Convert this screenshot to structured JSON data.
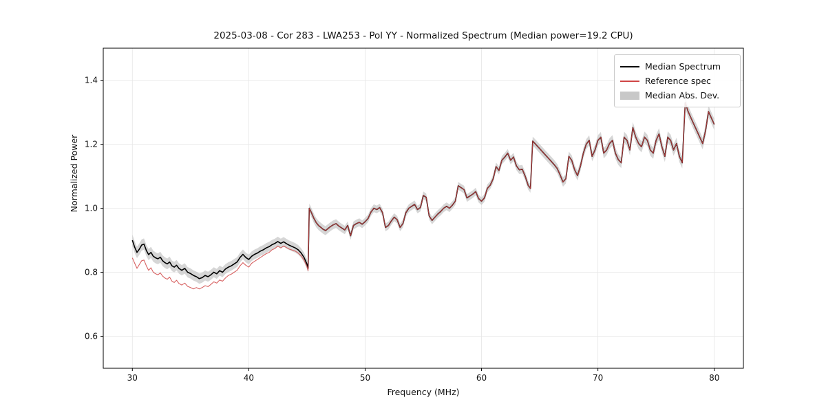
{
  "title": "2025-03-08 - Cor 283 - LWA253 - Pol YY - Normalized Spectrum (Median power=19.2 CPU)",
  "axes": {
    "xlabel": "Frequency (MHz)",
    "ylabel": "Normalized Power",
    "xticks": [
      "30",
      "40",
      "50",
      "60",
      "70",
      "80"
    ],
    "xtick_values": [
      30,
      40,
      50,
      60,
      70,
      80
    ],
    "yticks": [
      "0.6",
      "0.8",
      "1.0",
      "1.2",
      "1.4"
    ],
    "ytick_values": [
      0.6,
      0.8,
      1.0,
      1.2,
      1.4
    ],
    "xlim": [
      27.5,
      82.5
    ],
    "ylim": [
      0.5,
      1.5
    ],
    "grid": true,
    "grid_color": "#e6e6e6",
    "frame_color": "#000000"
  },
  "legend": {
    "position": "upper right",
    "items": [
      {
        "label": "Median Spectrum",
        "type": "line",
        "color": "#000000"
      },
      {
        "label": "Reference spec",
        "type": "line",
        "color": "#d04545"
      },
      {
        "label": "Median Abs. Dev.",
        "type": "band",
        "color": "#c8c8c8"
      }
    ]
  },
  "chart_data": {
    "type": "line",
    "title": "2025-03-08 - Cor 283 - LWA253 - Pol YY - Normalized Spectrum (Median power=19.2 CPU)",
    "xlabel": "Frequency (MHz)",
    "ylabel": "Normalized Power",
    "xlim": [
      27.5,
      82.5
    ],
    "ylim": [
      0.5,
      1.5
    ],
    "series": [
      {
        "name": "Median Spectrum",
        "color": "#000000",
        "linewidth": 1.6,
        "x": [
          30,
          30.2,
          30.4,
          30.6,
          30.8,
          31,
          31.2,
          31.4,
          31.6,
          31.8,
          32,
          32.2,
          32.4,
          32.6,
          32.8,
          33,
          33.2,
          33.4,
          33.6,
          33.8,
          34,
          34.25,
          34.5,
          34.75,
          35,
          35.25,
          35.5,
          35.75,
          36,
          36.25,
          36.5,
          36.75,
          37,
          37.25,
          37.5,
          37.75,
          38,
          38.25,
          38.5,
          38.75,
          39,
          39.25,
          39.5,
          39.75,
          40,
          40.25,
          40.5,
          40.75,
          41,
          41.25,
          41.5,
          41.75,
          42,
          42.25,
          42.5,
          42.75,
          43,
          43.25,
          43.5,
          43.75,
          44,
          44.25,
          44.5,
          44.75,
          45,
          45.1,
          45.2,
          45.4,
          45.6,
          45.8,
          46,
          46.2,
          46.4,
          46.6,
          46.8,
          47,
          47.25,
          47.5,
          47.75,
          48,
          48.25,
          48.5,
          48.75,
          49,
          49.25,
          49.5,
          49.75,
          50,
          50.25,
          50.5,
          50.75,
          51,
          51.25,
          51.5,
          51.75,
          52,
          52.25,
          52.5,
          52.75,
          53,
          53.25,
          53.5,
          53.75,
          54,
          54.25,
          54.5,
          54.75,
          55,
          55.25,
          55.5,
          55.75,
          56,
          56.25,
          56.5,
          56.75,
          57,
          57.25,
          57.5,
          57.75,
          58,
          58.25,
          58.5,
          58.75,
          59,
          59.25,
          59.5,
          59.75,
          60,
          60.25,
          60.5,
          60.75,
          61,
          61.25,
          61.5,
          61.75,
          62,
          62.25,
          62.5,
          62.75,
          63,
          63.25,
          63.5,
          63.75,
          64,
          64.2,
          64.4,
          64.6,
          64.8,
          65,
          65.25,
          65.5,
          65.75,
          66,
          66.25,
          66.5,
          66.75,
          67,
          67.25,
          67.5,
          67.75,
          68,
          68.25,
          68.5,
          68.75,
          69,
          69.25,
          69.5,
          69.75,
          70,
          70.25,
          70.5,
          70.75,
          71,
          71.25,
          71.5,
          71.75,
          72,
          72.25,
          72.5,
          72.75,
          73,
          73.25,
          73.5,
          73.75,
          74,
          74.25,
          74.5,
          74.75,
          75,
          75.25,
          75.5,
          75.75,
          76,
          76.25,
          76.5,
          76.75,
          77,
          77.25,
          77.5,
          77.75,
          78,
          78.25,
          78.5,
          78.75,
          79,
          79.25,
          79.5,
          79.75,
          80
        ],
        "y": [
          0.9,
          0.878,
          0.862,
          0.872,
          0.885,
          0.888,
          0.868,
          0.855,
          0.862,
          0.85,
          0.845,
          0.842,
          0.847,
          0.836,
          0.83,
          0.826,
          0.832,
          0.82,
          0.816,
          0.822,
          0.812,
          0.806,
          0.812,
          0.8,
          0.796,
          0.79,
          0.786,
          0.78,
          0.783,
          0.79,
          0.786,
          0.792,
          0.8,
          0.795,
          0.805,
          0.8,
          0.81,
          0.816,
          0.82,
          0.826,
          0.832,
          0.846,
          0.856,
          0.846,
          0.84,
          0.85,
          0.856,
          0.86,
          0.866,
          0.87,
          0.876,
          0.88,
          0.886,
          0.89,
          0.896,
          0.89,
          0.895,
          0.889,
          0.884,
          0.88,
          0.876,
          0.87,
          0.86,
          0.846,
          0.826,
          0.812,
          1.0,
          0.985,
          0.968,
          0.955,
          0.946,
          0.94,
          0.934,
          0.93,
          0.936,
          0.942,
          0.948,
          0.952,
          0.944,
          0.938,
          0.932,
          0.946,
          0.914,
          0.946,
          0.952,
          0.956,
          0.95,
          0.958,
          0.968,
          0.988,
          1.0,
          0.996,
          1.002,
          0.986,
          0.94,
          0.946,
          0.96,
          0.972,
          0.964,
          0.94,
          0.952,
          0.986,
          1.0,
          1.006,
          1.012,
          0.996,
          1.002,
          1.04,
          1.034,
          0.976,
          0.962,
          0.972,
          0.982,
          0.99,
          1.0,
          1.006,
          1.0,
          1.01,
          1.022,
          1.07,
          1.064,
          1.058,
          1.032,
          1.038,
          1.044,
          1.052,
          1.03,
          1.022,
          1.032,
          1.062,
          1.072,
          1.092,
          1.13,
          1.118,
          1.15,
          1.16,
          1.172,
          1.15,
          1.16,
          1.132,
          1.12,
          1.122,
          1.1,
          1.072,
          1.062,
          1.21,
          1.202,
          1.194,
          1.186,
          1.176,
          1.166,
          1.156,
          1.146,
          1.136,
          1.124,
          1.104,
          1.082,
          1.092,
          1.162,
          1.15,
          1.12,
          1.102,
          1.132,
          1.172,
          1.2,
          1.212,
          1.162,
          1.182,
          1.212,
          1.222,
          1.172,
          1.182,
          1.202,
          1.212,
          1.172,
          1.152,
          1.142,
          1.222,
          1.212,
          1.182,
          1.252,
          1.222,
          1.202,
          1.192,
          1.222,
          1.212,
          1.182,
          1.172,
          1.212,
          1.232,
          1.192,
          1.162,
          1.222,
          1.212,
          1.182,
          1.202,
          1.162,
          1.142,
          1.33,
          1.302,
          1.282,
          1.262,
          1.242,
          1.222,
          1.202,
          1.242,
          1.302,
          1.282,
          1.262
        ]
      },
      {
        "name": "Reference spec",
        "color": "#d04545",
        "linewidth": 1.1,
        "opacity": 0.85,
        "equals_median_from_x": 45.2,
        "x": [
          30,
          30.2,
          30.4,
          30.6,
          30.8,
          31,
          31.2,
          31.4,
          31.6,
          31.8,
          32,
          32.2,
          32.4,
          32.6,
          32.8,
          33,
          33.2,
          33.4,
          33.6,
          33.8,
          34,
          34.25,
          34.5,
          34.75,
          35,
          35.25,
          35.5,
          35.75,
          36,
          36.25,
          36.5,
          36.75,
          37,
          37.25,
          37.5,
          37.75,
          38,
          38.25,
          38.5,
          38.75,
          39,
          39.25,
          39.5,
          39.75,
          40,
          40.25,
          40.5,
          40.75,
          41,
          41.25,
          41.5,
          41.75,
          42,
          42.25,
          42.5,
          42.75,
          43,
          43.25,
          43.5,
          43.75,
          44,
          44.25,
          44.5,
          44.75,
          45,
          45.1
        ],
        "y": [
          0.845,
          0.828,
          0.812,
          0.824,
          0.836,
          0.838,
          0.82,
          0.806,
          0.814,
          0.8,
          0.795,
          0.792,
          0.798,
          0.788,
          0.782,
          0.778,
          0.785,
          0.772,
          0.768,
          0.775,
          0.765,
          0.76,
          0.766,
          0.756,
          0.752,
          0.748,
          0.752,
          0.748,
          0.752,
          0.758,
          0.755,
          0.762,
          0.77,
          0.766,
          0.776,
          0.772,
          0.782,
          0.79,
          0.794,
          0.8,
          0.806,
          0.82,
          0.83,
          0.822,
          0.816,
          0.828,
          0.834,
          0.84,
          0.846,
          0.852,
          0.858,
          0.862,
          0.87,
          0.874,
          0.882,
          0.876,
          0.882,
          0.877,
          0.872,
          0.869,
          0.866,
          0.86,
          0.851,
          0.838,
          0.818,
          0.805
        ]
      }
    ],
    "band": {
      "name": "Median Abs. Dev.",
      "around": "Median Spectrum",
      "color": "#c8c8c8",
      "opacity": 0.75,
      "halfwidth_keypoints": {
        "x": [
          30,
          35,
          40,
          45,
          50,
          55,
          60,
          65,
          70,
          75,
          80
        ],
        "hw": [
          0.018,
          0.016,
          0.015,
          0.015,
          0.012,
          0.012,
          0.012,
          0.014,
          0.016,
          0.018,
          0.018
        ]
      }
    }
  }
}
